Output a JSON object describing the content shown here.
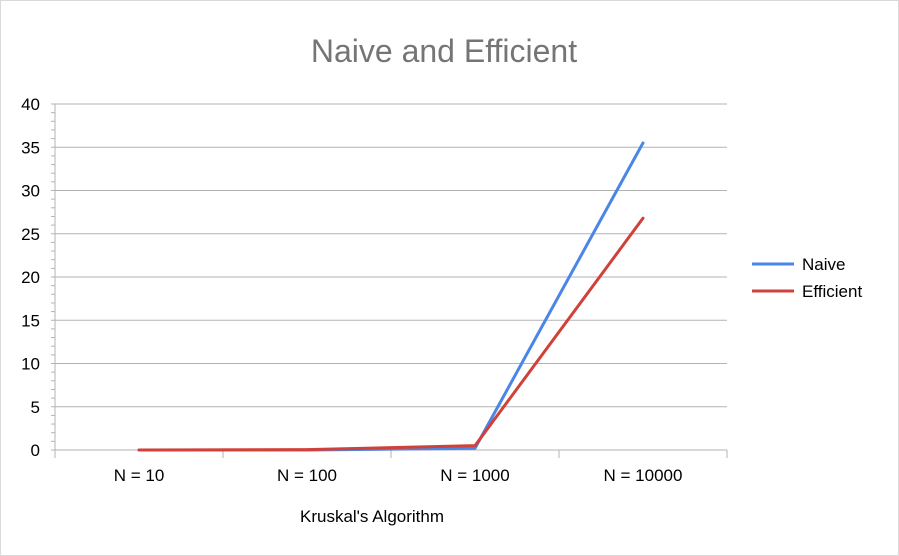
{
  "chart_data": {
    "type": "line",
    "title": "Naive and Efficient",
    "xlabel": "Kruskal's Algorithm",
    "ylabel": "",
    "categories": [
      "N = 10",
      "N = 100",
      "N = 1000",
      "N = 10000"
    ],
    "ylim": [
      0,
      40
    ],
    "yticks": [
      0,
      5,
      10,
      15,
      20,
      25,
      30,
      35,
      40
    ],
    "grid": true,
    "legend_position": "right",
    "series": [
      {
        "name": "Naive",
        "color": "#4a86e8",
        "values": [
          0.0,
          0.0,
          0.2,
          35.5
        ]
      },
      {
        "name": "Efficient",
        "color": "#d0413a",
        "values": [
          0.0,
          0.05,
          0.5,
          26.8
        ]
      }
    ]
  }
}
